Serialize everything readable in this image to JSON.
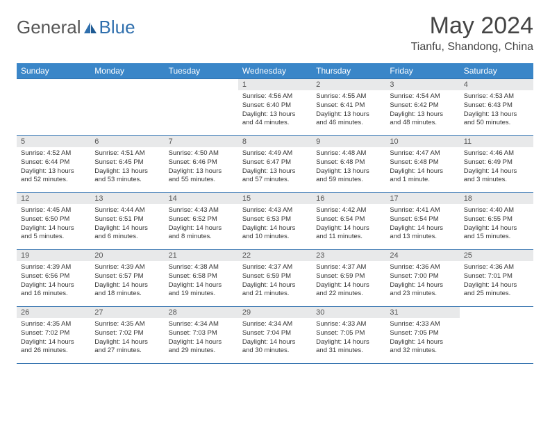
{
  "logo": {
    "part1": "General",
    "part2": "Blue"
  },
  "title": "May 2024",
  "location": "Tianfu, Shandong, China",
  "colors": {
    "header_bg": "#3a86c8",
    "header_text": "#ffffff",
    "border": "#2f6fad",
    "daynum_bg": "#e8e9ea",
    "text": "#333333",
    "logo_gray": "#555555",
    "logo_blue": "#2f6fad"
  },
  "weekdays": [
    "Sunday",
    "Monday",
    "Tuesday",
    "Wednesday",
    "Thursday",
    "Friday",
    "Saturday"
  ],
  "weeks": [
    [
      {
        "n": "",
        "sr": "",
        "ss": "",
        "dl": ""
      },
      {
        "n": "",
        "sr": "",
        "ss": "",
        "dl": ""
      },
      {
        "n": "",
        "sr": "",
        "ss": "",
        "dl": ""
      },
      {
        "n": "1",
        "sr": "4:56 AM",
        "ss": "6:40 PM",
        "dl": "13 hours and 44 minutes."
      },
      {
        "n": "2",
        "sr": "4:55 AM",
        "ss": "6:41 PM",
        "dl": "13 hours and 46 minutes."
      },
      {
        "n": "3",
        "sr": "4:54 AM",
        "ss": "6:42 PM",
        "dl": "13 hours and 48 minutes."
      },
      {
        "n": "4",
        "sr": "4:53 AM",
        "ss": "6:43 PM",
        "dl": "13 hours and 50 minutes."
      }
    ],
    [
      {
        "n": "5",
        "sr": "4:52 AM",
        "ss": "6:44 PM",
        "dl": "13 hours and 52 minutes."
      },
      {
        "n": "6",
        "sr": "4:51 AM",
        "ss": "6:45 PM",
        "dl": "13 hours and 53 minutes."
      },
      {
        "n": "7",
        "sr": "4:50 AM",
        "ss": "6:46 PM",
        "dl": "13 hours and 55 minutes."
      },
      {
        "n": "8",
        "sr": "4:49 AM",
        "ss": "6:47 PM",
        "dl": "13 hours and 57 minutes."
      },
      {
        "n": "9",
        "sr": "4:48 AM",
        "ss": "6:48 PM",
        "dl": "13 hours and 59 minutes."
      },
      {
        "n": "10",
        "sr": "4:47 AM",
        "ss": "6:48 PM",
        "dl": "14 hours and 1 minute."
      },
      {
        "n": "11",
        "sr": "4:46 AM",
        "ss": "6:49 PM",
        "dl": "14 hours and 3 minutes."
      }
    ],
    [
      {
        "n": "12",
        "sr": "4:45 AM",
        "ss": "6:50 PM",
        "dl": "14 hours and 5 minutes."
      },
      {
        "n": "13",
        "sr": "4:44 AM",
        "ss": "6:51 PM",
        "dl": "14 hours and 6 minutes."
      },
      {
        "n": "14",
        "sr": "4:43 AM",
        "ss": "6:52 PM",
        "dl": "14 hours and 8 minutes."
      },
      {
        "n": "15",
        "sr": "4:43 AM",
        "ss": "6:53 PM",
        "dl": "14 hours and 10 minutes."
      },
      {
        "n": "16",
        "sr": "4:42 AM",
        "ss": "6:54 PM",
        "dl": "14 hours and 11 minutes."
      },
      {
        "n": "17",
        "sr": "4:41 AM",
        "ss": "6:54 PM",
        "dl": "14 hours and 13 minutes."
      },
      {
        "n": "18",
        "sr": "4:40 AM",
        "ss": "6:55 PM",
        "dl": "14 hours and 15 minutes."
      }
    ],
    [
      {
        "n": "19",
        "sr": "4:39 AM",
        "ss": "6:56 PM",
        "dl": "14 hours and 16 minutes."
      },
      {
        "n": "20",
        "sr": "4:39 AM",
        "ss": "6:57 PM",
        "dl": "14 hours and 18 minutes."
      },
      {
        "n": "21",
        "sr": "4:38 AM",
        "ss": "6:58 PM",
        "dl": "14 hours and 19 minutes."
      },
      {
        "n": "22",
        "sr": "4:37 AM",
        "ss": "6:59 PM",
        "dl": "14 hours and 21 minutes."
      },
      {
        "n": "23",
        "sr": "4:37 AM",
        "ss": "6:59 PM",
        "dl": "14 hours and 22 minutes."
      },
      {
        "n": "24",
        "sr": "4:36 AM",
        "ss": "7:00 PM",
        "dl": "14 hours and 23 minutes."
      },
      {
        "n": "25",
        "sr": "4:36 AM",
        "ss": "7:01 PM",
        "dl": "14 hours and 25 minutes."
      }
    ],
    [
      {
        "n": "26",
        "sr": "4:35 AM",
        "ss": "7:02 PM",
        "dl": "14 hours and 26 minutes."
      },
      {
        "n": "27",
        "sr": "4:35 AM",
        "ss": "7:02 PM",
        "dl": "14 hours and 27 minutes."
      },
      {
        "n": "28",
        "sr": "4:34 AM",
        "ss": "7:03 PM",
        "dl": "14 hours and 29 minutes."
      },
      {
        "n": "29",
        "sr": "4:34 AM",
        "ss": "7:04 PM",
        "dl": "14 hours and 30 minutes."
      },
      {
        "n": "30",
        "sr": "4:33 AM",
        "ss": "7:05 PM",
        "dl": "14 hours and 31 minutes."
      },
      {
        "n": "31",
        "sr": "4:33 AM",
        "ss": "7:05 PM",
        "dl": "14 hours and 32 minutes."
      },
      {
        "n": "",
        "sr": "",
        "ss": "",
        "dl": ""
      }
    ]
  ]
}
